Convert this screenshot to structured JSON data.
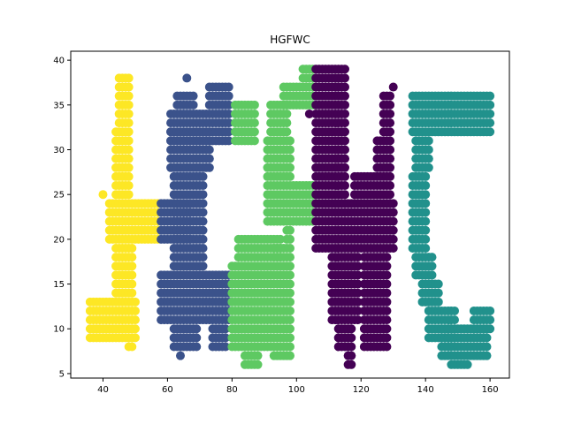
{
  "chart_data": {
    "type": "scatter",
    "title": "HGFWC",
    "xlabel": "",
    "ylabel": "",
    "xlim": [
      30,
      166
    ],
    "ylim": [
      4.5,
      41
    ],
    "xticks": [
      40,
      60,
      80,
      100,
      120,
      140,
      160
    ],
    "yticks": [
      5,
      10,
      15,
      20,
      25,
      30,
      35,
      40
    ],
    "grid": false,
    "legend": "none",
    "series": [
      {
        "letter": "H",
        "color": "#fde725",
        "rects": [
          {
            "x0": 36,
            "x1": 50,
            "y0": 9,
            "y1": 13
          },
          {
            "x0": 48,
            "x1": 49,
            "y0": 8,
            "y1": 8
          },
          {
            "x0": 44,
            "x1": 49,
            "y0": 14,
            "y1": 19
          },
          {
            "x0": 42,
            "x1": 57,
            "y0": 20,
            "y1": 24
          },
          {
            "x0": 40,
            "x1": 40,
            "y0": 25,
            "y1": 25
          },
          {
            "x0": 44,
            "x1": 48,
            "y0": 25,
            "y1": 32
          },
          {
            "x0": 45,
            "x1": 48,
            "y0": 33,
            "y1": 38
          }
        ]
      },
      {
        "letter": "G",
        "color": "#3b528b",
        "rects": [
          {
            "x0": 58,
            "x1": 79,
            "y0": 11,
            "y1": 16
          },
          {
            "x0": 62,
            "x1": 69,
            "y0": 8,
            "y1": 10
          },
          {
            "x0": 74,
            "x1": 78,
            "y0": 8,
            "y1": 10
          },
          {
            "x0": 64,
            "x1": 64,
            "y0": 7,
            "y1": 7
          },
          {
            "x0": 58,
            "x1": 67,
            "y0": 20,
            "y1": 24
          },
          {
            "x0": 62,
            "x1": 71,
            "y0": 17,
            "y1": 27
          },
          {
            "x0": 61,
            "x1": 73,
            "y0": 28,
            "y1": 32
          },
          {
            "x0": 61,
            "x1": 79,
            "y0": 31,
            "y1": 34
          },
          {
            "x0": 63,
            "x1": 68,
            "y0": 35,
            "y1": 36
          },
          {
            "x0": 73,
            "x1": 79,
            "y0": 35,
            "y1": 37
          },
          {
            "x0": 66,
            "x1": 66,
            "y0": 38,
            "y1": 38
          }
        ]
      },
      {
        "letter": "F",
        "color": "#5ec962",
        "rects": [
          {
            "x0": 80,
            "x1": 92,
            "y0": 8,
            "y1": 17
          },
          {
            "x0": 84,
            "x1": 88,
            "y0": 6,
            "y1": 7
          },
          {
            "x0": 93,
            "x1": 98,
            "y0": 7,
            "y1": 19
          },
          {
            "x0": 82,
            "x1": 95,
            "y0": 18,
            "y1": 20
          },
          {
            "x0": 97,
            "x1": 98,
            "y0": 20,
            "y1": 21
          },
          {
            "x0": 91,
            "x1": 105,
            "y0": 22,
            "y1": 26
          },
          {
            "x0": 91,
            "x1": 98,
            "y0": 27,
            "y1": 31
          },
          {
            "x0": 92,
            "x1": 97,
            "y0": 32,
            "y1": 35
          },
          {
            "x0": 81,
            "x1": 87,
            "y0": 31,
            "y1": 35
          },
          {
            "x0": 96,
            "x1": 105,
            "y0": 35,
            "y1": 37
          },
          {
            "x0": 102,
            "x1": 105,
            "y0": 38,
            "y1": 39
          }
        ]
      },
      {
        "letter": "W",
        "color": "#440154",
        "rects": [
          {
            "x0": 106,
            "x1": 130,
            "y0": 19,
            "y1": 24
          },
          {
            "x0": 106,
            "x1": 115,
            "y0": 25,
            "y1": 39
          },
          {
            "x0": 111,
            "x1": 119,
            "y0": 11,
            "y1": 18
          },
          {
            "x0": 113,
            "x1": 117,
            "y0": 8,
            "y1": 10
          },
          {
            "x0": 116,
            "x1": 117,
            "y0": 6,
            "y1": 7
          },
          {
            "x0": 118,
            "x1": 124,
            "y0": 25,
            "y1": 27
          },
          {
            "x0": 121,
            "x1": 128,
            "y0": 8,
            "y1": 18
          },
          {
            "x0": 125,
            "x1": 129,
            "y0": 25,
            "y1": 31
          },
          {
            "x0": 127,
            "x1": 129,
            "y0": 32,
            "y1": 36
          },
          {
            "x0": 130,
            "x1": 130,
            "y0": 37,
            "y1": 37
          },
          {
            "x0": 104,
            "x1": 104,
            "y0": 34,
            "y1": 34
          }
        ]
      },
      {
        "letter": "C",
        "color": "#21918c",
        "rects": [
          {
            "x0": 136,
            "x1": 160,
            "y0": 32,
            "y1": 36
          },
          {
            "x0": 137,
            "x1": 141,
            "y0": 28,
            "y1": 31
          },
          {
            "x0": 136,
            "x1": 140,
            "y0": 19,
            "y1": 27
          },
          {
            "x0": 137,
            "x1": 142,
            "y0": 16,
            "y1": 18
          },
          {
            "x0": 139,
            "x1": 144,
            "y0": 13,
            "y1": 15
          },
          {
            "x0": 141,
            "x1": 149,
            "y0": 9,
            "y1": 12
          },
          {
            "x0": 145,
            "x1": 159,
            "y0": 7,
            "y1": 10
          },
          {
            "x0": 148,
            "x1": 153,
            "y0": 6,
            "y1": 6
          },
          {
            "x0": 155,
            "x1": 160,
            "y0": 10,
            "y1": 12
          }
        ]
      }
    ]
  }
}
